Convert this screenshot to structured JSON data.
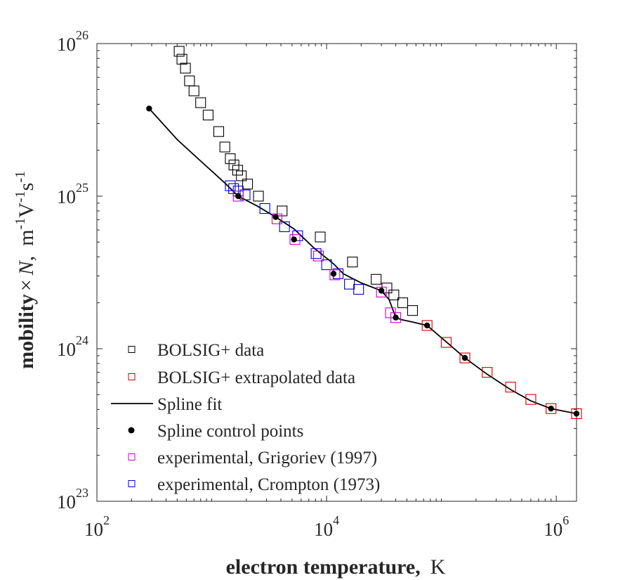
{
  "chart_data": {
    "type": "scatter",
    "x_scale": "log",
    "y_scale": "log",
    "xlim": [
      100,
      1500000
    ],
    "ylim": [
      1e+23,
      1e+26
    ],
    "x_ticks": [
      {
        "base": "10",
        "exp": "2"
      },
      {
        "base": "10",
        "exp": "4"
      },
      {
        "base": "10",
        "exp": "6"
      }
    ],
    "y_ticks": [
      {
        "base": "10",
        "exp": "23"
      },
      {
        "base": "10",
        "exp": "24"
      },
      {
        "base": "10",
        "exp": "25"
      },
      {
        "base": "10",
        "exp": "26"
      }
    ],
    "x_tick_values": [
      100,
      10000,
      1000000
    ],
    "y_tick_values": [
      1e+23,
      1e+24,
      1e+25,
      1e+26
    ],
    "xlabel_bold": "electron temperature,",
    "xlabel_unit": "K",
    "ylabel": {
      "bold": "mobility",
      "times": "×",
      "symbol": "N",
      "comma": ",",
      "unit_m": "m",
      "exp1": "-1",
      "unit_v": "V",
      "exp2": "-1",
      "unit_s": "s",
      "exp3": "-1"
    },
    "grid": false,
    "legend_position": "bottom-left",
    "colors": {
      "bolsig": "#000000",
      "bolsig_extrap": "#cc0000",
      "spline": "#000000",
      "control": "#000000",
      "grigoriev": "#cc00cc",
      "crompton": "#0000cc"
    },
    "legend": [
      {
        "label": "BOLSIG+ data",
        "marker": "square",
        "color": "#000000"
      },
      {
        "label": "BOLSIG+ extrapolated data",
        "marker": "square",
        "color": "#cc0000"
      },
      {
        "label": "Spline fit",
        "marker": "line",
        "color": "#000000"
      },
      {
        "label": "Spline control points",
        "marker": "dot",
        "color": "#000000"
      },
      {
        "label": "experimental, Grigoriev (1997)",
        "marker": "square",
        "color": "#cc00cc"
      },
      {
        "label": "experimental, Crompton (1973)",
        "marker": "square",
        "color": "#0000cc"
      }
    ],
    "series": [
      {
        "name": "BOLSIG+ data",
        "marker": "square",
        "color": "#000000",
        "points": [
          [
            520,
            8.9e+25
          ],
          [
            550,
            7.9e+25
          ],
          [
            590,
            6.9e+25
          ],
          [
            640,
            5.7e+25
          ],
          [
            700,
            4.9e+25
          ],
          [
            800,
            4.1e+25
          ],
          [
            930,
            3.4e+25
          ],
          [
            1150,
            2.65e+25
          ],
          [
            1300,
            2.1e+25
          ],
          [
            1450,
            1.76e+25
          ],
          [
            1560,
            1.6e+25
          ],
          [
            1680,
            1.48e+25
          ],
          [
            1810,
            1.36e+25
          ],
          [
            2050,
            1.2e+25
          ],
          [
            2550,
            1e+25
          ],
          [
            4100,
            8e+24
          ],
          [
            8800,
            5.4e+24
          ],
          [
            16800,
            3.7e+24
          ],
          [
            27000,
            2.85e+24
          ],
          [
            33500,
            2.5e+24
          ],
          [
            38500,
            2.25e+24
          ],
          [
            46000,
            2e+24
          ],
          [
            56000,
            1.78e+24
          ]
        ]
      },
      {
        "name": "BOLSIG+ extrapolated data",
        "marker": "square",
        "color": "#cc0000",
        "points": [
          [
            75000,
            1.42e+24
          ],
          [
            110000,
            1.1e+24
          ],
          [
            160000,
            8.7e+23
          ],
          [
            250000,
            7e+23
          ],
          [
            400000,
            5.6e+23
          ],
          [
            600000,
            4.65e+23
          ],
          [
            900000,
            4.05e+23
          ],
          [
            1500000,
            3.75e+23
          ]
        ]
      },
      {
        "name": "Spline fit",
        "marker": "line",
        "color": "#000000",
        "points": [
          [
            285,
            3.75e+25
          ],
          [
            500,
            2.35e+25
          ],
          [
            800,
            1.7e+25
          ],
          [
            1300,
            1.22e+25
          ],
          [
            1700,
            1e+25
          ],
          [
            2500,
            8.6e+24
          ],
          [
            3600,
            7.3e+24
          ],
          [
            5200,
            6.1e+24
          ],
          [
            7700,
            4.6e+24
          ],
          [
            11500,
            3.6e+24
          ],
          [
            14000,
            3.1e+24
          ],
          [
            20000,
            2.7e+24
          ],
          [
            30000,
            2.4e+24
          ],
          [
            35000,
            2.1e+24
          ],
          [
            40000,
            1.6e+24
          ],
          [
            45000,
            1.55e+24
          ],
          [
            55000,
            1.5e+24
          ],
          [
            75000,
            1.42e+24
          ],
          [
            100000,
            1.18e+24
          ],
          [
            160000,
            8.7e+23
          ],
          [
            250000,
            6.8e+23
          ],
          [
            400000,
            5.4e+23
          ],
          [
            600000,
            4.55e+23
          ],
          [
            900000,
            4.05e+23
          ],
          [
            1500000,
            3.75e+23
          ]
        ]
      },
      {
        "name": "Spline control points",
        "marker": "dot",
        "color": "#000000",
        "points": [
          [
            285,
            3.75e+25
          ],
          [
            1700,
            1e+25
          ],
          [
            3600,
            7.3e+24
          ],
          [
            5200,
            5.2e+24
          ],
          [
            11500,
            3.1e+24
          ],
          [
            30000,
            2.4e+24
          ],
          [
            40000,
            1.6e+24
          ],
          [
            75000,
            1.42e+24
          ],
          [
            160000,
            8.7e+23
          ],
          [
            900000,
            4.05e+23
          ],
          [
            1500000,
            3.75e+23
          ]
        ]
      },
      {
        "name": "experimental, Grigoriev (1997)",
        "marker": "square",
        "color": "#cc00cc",
        "points": [
          [
            1700,
            1e+25
          ],
          [
            3700,
            7.1e+24
          ],
          [
            5300,
            5.2e+24
          ],
          [
            8500,
            4.05e+24
          ],
          [
            11800,
            3.05e+24
          ],
          [
            30000,
            2.35e+24
          ],
          [
            36000,
            1.72e+24
          ],
          [
            40000,
            1.6e+24
          ]
        ]
      },
      {
        "name": "experimental, Crompton (1973)",
        "marker": "square",
        "color": "#0000cc",
        "points": [
          [
            1450,
            1.17e+25
          ],
          [
            1550,
            1.12e+25
          ],
          [
            1700,
            1.08e+25
          ],
          [
            1950,
            1.02e+25
          ],
          [
            2900,
            8.3e+24
          ],
          [
            4300,
            6.3e+24
          ],
          [
            5600,
            5.5e+24
          ],
          [
            8100,
            4.2e+24
          ],
          [
            10000,
            3.55e+24
          ],
          [
            12600,
            3.1e+24
          ],
          [
            15800,
            2.65e+24
          ],
          [
            19000,
            2.45e+24
          ]
        ]
      }
    ]
  }
}
